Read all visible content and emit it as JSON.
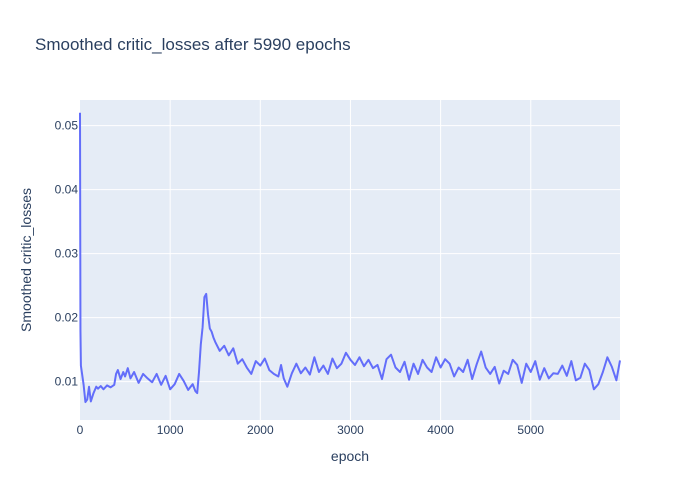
{
  "chart_data": {
    "type": "line",
    "title": "Smoothed critic_losses after 5990 epochs",
    "xlabel": "epoch",
    "ylabel": "Smoothed critic_losses",
    "xlim": [
      0,
      5990
    ],
    "ylim": [
      0.004,
      0.054
    ],
    "xticks": [
      0,
      1000,
      2000,
      3000,
      4000,
      5000
    ],
    "yticks": [
      0.01,
      0.02,
      0.03,
      0.04,
      0.05
    ],
    "xtick_labels": [
      "0",
      "1000",
      "2000",
      "3000",
      "4000",
      "5000"
    ],
    "ytick_labels": [
      "0.01",
      "0.02",
      "0.03",
      "0.04",
      "0.05"
    ],
    "grid": true,
    "legend": "none",
    "plot_bg": "#e5ecf6",
    "line_color": "#636efa",
    "series": [
      {
        "x": [
          0,
          5,
          10,
          20,
          40,
          60,
          80,
          100,
          120,
          150,
          180,
          200,
          230,
          260,
          300,
          340,
          380,
          400,
          420,
          450,
          480,
          500,
          530,
          560,
          600,
          650,
          700,
          750,
          800,
          850,
          900,
          950,
          1000,
          1050,
          1100,
          1150,
          1200,
          1250,
          1280,
          1300,
          1320,
          1340,
          1360,
          1380,
          1400,
          1420,
          1440,
          1460,
          1480,
          1500,
          1550,
          1600,
          1650,
          1700,
          1750,
          1800,
          1850,
          1900,
          1950,
          2000,
          2050,
          2100,
          2150,
          2200,
          2230,
          2260,
          2300,
          2350,
          2400,
          2450,
          2500,
          2550,
          2600,
          2650,
          2700,
          2750,
          2800,
          2850,
          2900,
          2950,
          3000,
          3050,
          3100,
          3150,
          3200,
          3250,
          3300,
          3350,
          3400,
          3450,
          3500,
          3550,
          3600,
          3650,
          3700,
          3750,
          3800,
          3850,
          3900,
          3950,
          4000,
          4050,
          4100,
          4150,
          4200,
          4250,
          4300,
          4350,
          4400,
          4450,
          4500,
          4550,
          4600,
          4650,
          4700,
          4750,
          4800,
          4850,
          4900,
          4950,
          5000,
          5050,
          5100,
          5150,
          5200,
          5250,
          5300,
          5350,
          5400,
          5450,
          5500,
          5550,
          5600,
          5650,
          5700,
          5750,
          5800,
          5850,
          5900,
          5950,
          5990
        ],
        "y": [
          0.052,
          0.018,
          0.0125,
          0.0115,
          0.0095,
          0.0068,
          0.0072,
          0.0092,
          0.0069,
          0.0082,
          0.0092,
          0.0089,
          0.0093,
          0.0088,
          0.0094,
          0.0091,
          0.0095,
          0.0112,
          0.0118,
          0.0104,
          0.0115,
          0.0108,
          0.0121,
          0.0105,
          0.0115,
          0.0098,
          0.0112,
          0.0105,
          0.0099,
          0.0112,
          0.0095,
          0.0109,
          0.0088,
          0.0096,
          0.0112,
          0.0101,
          0.0087,
          0.0096,
          0.0085,
          0.0082,
          0.0115,
          0.0158,
          0.0185,
          0.0232,
          0.0237,
          0.0205,
          0.0183,
          0.0178,
          0.0169,
          0.0162,
          0.0148,
          0.0156,
          0.0141,
          0.0152,
          0.0128,
          0.0135,
          0.0122,
          0.0112,
          0.0132,
          0.0125,
          0.0136,
          0.0118,
          0.0112,
          0.0108,
          0.0126,
          0.0105,
          0.0092,
          0.0113,
          0.0128,
          0.0113,
          0.0122,
          0.0111,
          0.0138,
          0.0115,
          0.0125,
          0.0112,
          0.0136,
          0.0121,
          0.0128,
          0.0145,
          0.0134,
          0.0126,
          0.0138,
          0.0124,
          0.0134,
          0.0121,
          0.0126,
          0.0104,
          0.0135,
          0.0142,
          0.0122,
          0.0115,
          0.0131,
          0.0103,
          0.0128,
          0.0112,
          0.0134,
          0.0122,
          0.0115,
          0.0138,
          0.0122,
          0.0135,
          0.0128,
          0.0108,
          0.0122,
          0.0115,
          0.0134,
          0.0104,
          0.0127,
          0.0147,
          0.0122,
          0.0112,
          0.0123,
          0.0097,
          0.0117,
          0.0112,
          0.0134,
          0.0126,
          0.0098,
          0.0128,
          0.0115,
          0.0132,
          0.0103,
          0.0121,
          0.0105,
          0.0113,
          0.0112,
          0.0125,
          0.0109,
          0.0132,
          0.0102,
          0.0106,
          0.0128,
          0.0118,
          0.0088,
          0.0096,
          0.0115,
          0.0138,
          0.0123,
          0.0102,
          0.0133
        ]
      }
    ]
  }
}
